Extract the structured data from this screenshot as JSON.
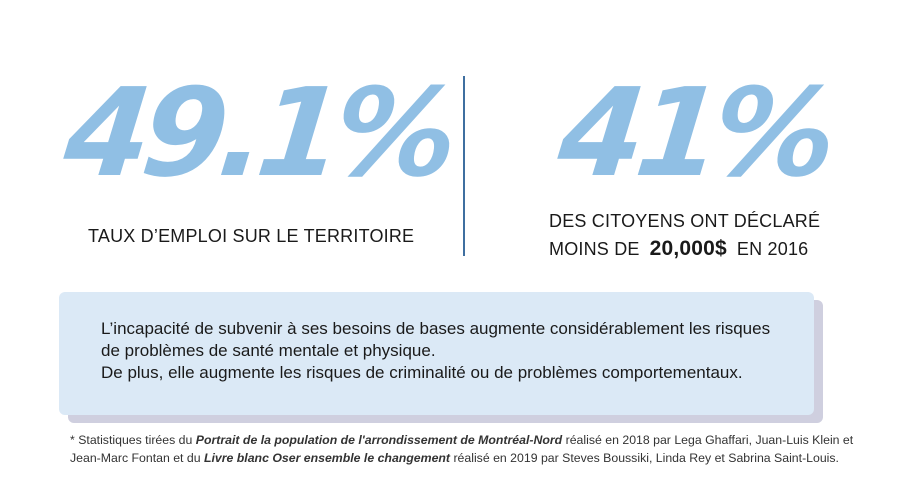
{
  "stats": {
    "left": {
      "value": "49.1%",
      "caption": "TAUX D’EMPLOI SUR LE TERRITOIRE"
    },
    "right": {
      "value": "41%",
      "caption_line1": "DES CITOYENS ONT DÉCLARÉ",
      "caption_line2_prefix": "MOINS DE",
      "caption_line2_amount": "20,000$",
      "caption_line2_suffix": "EN 2016"
    }
  },
  "callout": {
    "line1": "L’incapacité de subvenir à ses besoins de bases augmente considérablement les risques",
    "line2": "de problèmes de santé mentale et physique.",
    "line3": "De plus, elle augmente les risques de criminalité ou de problèmes comportementaux."
  },
  "footnote": {
    "part1": "* Statistiques tirées du ",
    "source1": "Portrait de la population de l'arrondissement de Montréal-Nord",
    "part2": " réalisé en 2018 par Lega Ghaffari, Juan-Luis Klein et",
    "part3": "Jean-Marc Fontan et du ",
    "source2": "Livre blanc Oser ensemble le changement",
    "part4": " réalisé en 2019 par Steves Boussiki, Linda Rey et Sabrina Saint-Louis."
  },
  "colors": {
    "stat_number": "#90bfe4",
    "divider": "#3f6fa0",
    "callout_bg": "#dbe9f6",
    "callout_shadow": "#cfcfdf"
  }
}
